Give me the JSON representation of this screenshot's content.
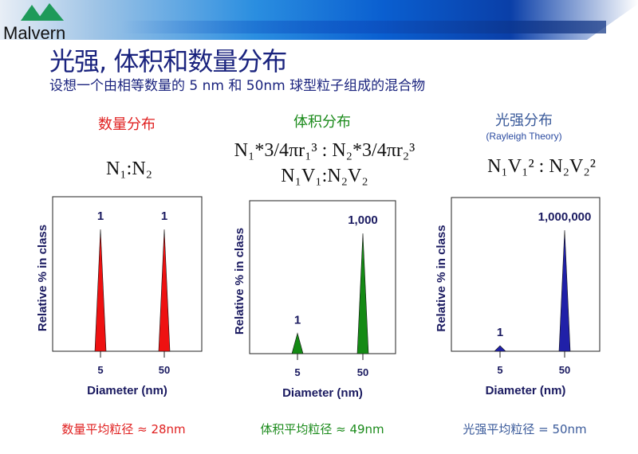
{
  "header": {
    "brand": "Malvern",
    "title": "光强, 体积和数量分布",
    "subtitle": "设想一个由相等数量的 5 nm 和 50nm 球型粒子组成的混合物"
  },
  "columns": [
    {
      "heading": "数量分布",
      "heading_color": "#e02020",
      "formula_lines": [
        "N₁:N₂"
      ],
      "footer": "数量平均粒径 ≈ 28nm"
    },
    {
      "heading": "体积分布",
      "heading_color": "#1a8a1a",
      "formula_lines": [
        "N₁*3/4πr₁³ : N₂*3/4πr₂³",
        "N₁V₁:N₂V₂"
      ],
      "footer": "体积平均粒径 ≈ 49nm"
    },
    {
      "heading": "光强分布",
      "heading_color": "#3a5a9a",
      "note": "(Rayleigh Theory)",
      "formula_lines": [
        "N₁V₁² : N₂V₂²"
      ],
      "footer": "光强平均粒径 = 50nm"
    }
  ],
  "chart_data": [
    {
      "type": "bar",
      "title": "数量分布",
      "categories": [
        "5",
        "50"
      ],
      "values": [
        1,
        1
      ],
      "data_labels": [
        "1",
        "1"
      ],
      "xlabel": "Diameter (nm)",
      "ylabel": "Relative % in class",
      "color": "#ee1111"
    },
    {
      "type": "bar",
      "title": "体积分布",
      "categories": [
        "5",
        "50"
      ],
      "values": [
        1,
        1000
      ],
      "data_labels": [
        "1",
        "1,000"
      ],
      "xlabel": "Diameter (nm)",
      "ylabel": "Relative % in class",
      "color": "#148a14"
    },
    {
      "type": "bar",
      "title": "光强分布",
      "categories": [
        "5",
        "50"
      ],
      "values": [
        1,
        1000000
      ],
      "data_labels": [
        "1",
        "1,000,000"
      ],
      "xlabel": "Diameter (nm)",
      "ylabel": "Relative % in class",
      "color": "#2020a8"
    }
  ]
}
